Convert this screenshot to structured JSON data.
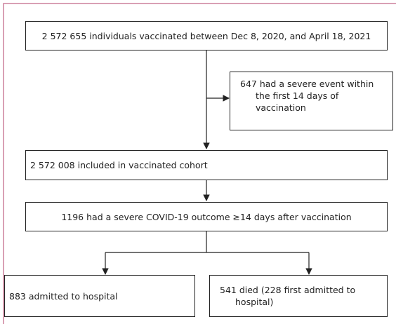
{
  "nodes": [
    {
      "label": "2 572 655 individuals vaccinated between Dec 8, 2020, and April 18, 2021"
    },
    {
      "label": "647 had a severe event within the first 14 days of vaccination"
    },
    {
      "label": "2 572 008 included in vaccinated cohort"
    },
    {
      "label": "1196 had a severe COVID-19 outcome ≥14 days after vaccination"
    },
    {
      "label": "883 admitted to hospital"
    },
    {
      "label": "541 died (228 first admitted to hospital)"
    }
  ]
}
